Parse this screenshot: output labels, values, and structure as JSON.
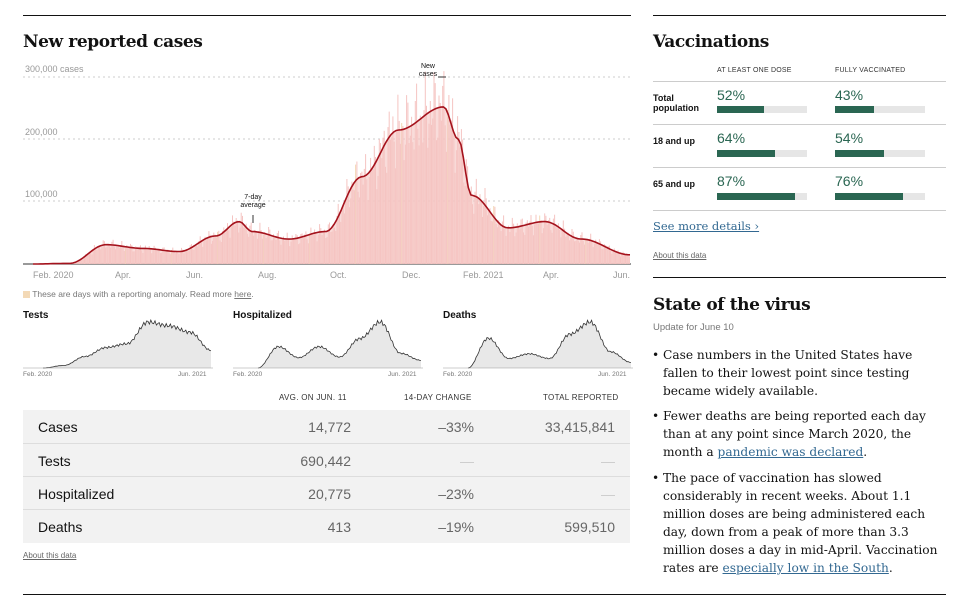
{
  "main_chart": {
    "title": "New reported cases",
    "y_unit_label": "300,000 cases",
    "annotation_new": [
      "New",
      "cases"
    ],
    "annotation_avg": [
      "7-day",
      "average"
    ],
    "anomaly_note": "These are days with a reporting anomaly. Read more ",
    "anomaly_link": "here",
    "anomaly_end": "."
  },
  "chart_data": [
    {
      "type": "area",
      "title": "New reported cases",
      "ylabel": "cases",
      "ylim": [
        0,
        300000
      ],
      "yticks": [
        100000,
        200000,
        300000
      ],
      "ytick_labels": [
        "100,000",
        "200,000",
        "300,000 cases"
      ],
      "xtick_labels": [
        "Feb. 2020",
        "Apr.",
        "Jun.",
        "Aug.",
        "Oct.",
        "Dec.",
        "Feb. 2021",
        "Apr.",
        "Jun."
      ],
      "x": [
        "2020-02",
        "2020-03",
        "2020-04",
        "2020-05",
        "2020-06",
        "2020-07",
        "2020-07-20",
        "2020-08",
        "2020-09",
        "2020-10",
        "2020-11",
        "2020-12",
        "2021-01-08",
        "2021-01-20",
        "2021-02",
        "2021-03",
        "2021-04",
        "2021-05",
        "2021-06-11"
      ],
      "series": [
        {
          "name": "7-day average",
          "values": [
            0,
            1000,
            31000,
            25000,
            20000,
            45000,
            68000,
            52000,
            40000,
            52000,
            140000,
            215000,
            252000,
            200000,
            110000,
            58000,
            68000,
            40000,
            14772
          ]
        }
      ]
    },
    {
      "type": "area",
      "title": "Tests",
      "xtick_labels": [
        "Feb. 2020",
        "Jun. 2021"
      ],
      "x": [
        "2020-02",
        "2020-04",
        "2020-06",
        "2020-08",
        "2020-10",
        "2020-12",
        "2021-02",
        "2021-04",
        "2021-06"
      ],
      "series": [
        {
          "name": "Tests",
          "values": [
            0,
            100000,
            450000,
            800000,
            950000,
            1800000,
            1650000,
            1400000,
            690442
          ]
        }
      ]
    },
    {
      "type": "area",
      "title": "Hospitalized",
      "xtick_labels": [
        "Feb. 2020",
        "Jun. 2021"
      ],
      "x": [
        "2020-03",
        "2020-04",
        "2020-06",
        "2020-07",
        "2020-09",
        "2020-11",
        "2021-01",
        "2021-03",
        "2021-06"
      ],
      "series": [
        {
          "name": "Hospitalized",
          "values": [
            0,
            58000,
            28000,
            58000,
            30000,
            80000,
            125000,
            40000,
            20775
          ]
        }
      ]
    },
    {
      "type": "area",
      "title": "Deaths",
      "xtick_labels": [
        "Feb. 2020",
        "Jun. 2021"
      ],
      "x": [
        "2020-03",
        "2020-04",
        "2020-06",
        "2020-08",
        "2020-10",
        "2020-12",
        "2021-01",
        "2021-03",
        "2021-06"
      ],
      "series": [
        {
          "name": "Deaths",
          "values": [
            0,
            2200,
            700,
            1050,
            700,
            2500,
            3400,
            1200,
            413
          ]
        }
      ]
    }
  ],
  "small_charts": [
    {
      "title": "Tests",
      "start": "Feb. 2020",
      "end": "Jun. 2021"
    },
    {
      "title": "Hospitalized",
      "start": "Feb. 2020",
      "end": "Jun. 2021"
    },
    {
      "title": "Deaths",
      "start": "Feb. 2020",
      "end": "Jun. 2021"
    }
  ],
  "table": {
    "headers": [
      "AVG. ON JUN. 11",
      "14-DAY CHANGE",
      "TOTAL REPORTED"
    ],
    "rows": [
      {
        "label": "Cases",
        "avg": "14,772",
        "change": "–33%",
        "total": "33,415,841"
      },
      {
        "label": "Tests",
        "avg": "690,442",
        "change": "—",
        "total": "—"
      },
      {
        "label": "Hospitalized",
        "avg": "20,775",
        "change": "–23%",
        "total": "—"
      },
      {
        "label": "Deaths",
        "avg": "413",
        "change": "–19%",
        "total": "599,510"
      }
    ],
    "about": "About this data"
  },
  "vaccinations": {
    "title": "Vaccinations",
    "col1": "AT LEAST ONE DOSE",
    "col2": "FULLY VACCINATED",
    "rows": [
      {
        "label_1": "Total",
        "label_2": "population",
        "one_dose": "52%",
        "one_dose_value": 52,
        "full": "43%",
        "full_value": 43
      },
      {
        "label_1": "18 and up",
        "label_2": "",
        "one_dose": "64%",
        "one_dose_value": 64,
        "full": "54%",
        "full_value": 54
      },
      {
        "label_1": "65 and up",
        "label_2": "",
        "one_dose": "87%",
        "one_dose_value": 87,
        "full": "76%",
        "full_value": 76
      }
    ],
    "see_more": "See more details ›",
    "about": "About this data",
    "bar_color": "#2a6652"
  },
  "virus_state": {
    "title": "State of the virus",
    "update": "Update for June 10",
    "bullet_1": "Case numbers in the United States have fallen to their lowest point since testing became widely available.",
    "bullet_2a": "Fewer deaths are being reported each day than at any point since March 2020, the month a ",
    "bullet_2_link": "pandemic was declared",
    "bullet_2b": ".",
    "bullet_3a": "The pace of vaccination has slowed considerably in recent weeks. About 1.1 million doses are being administered each day, down from a peak of more than 3.3 million doses a day in mid-April. Vaccination rates are ",
    "bullet_3_link": "especially low in the South",
    "bullet_3b": "."
  },
  "colors": {
    "cases_line": "#a4121c",
    "cases_fill": "#f5c4c2",
    "anomaly": "#f3d9b6",
    "link": "#326891"
  }
}
